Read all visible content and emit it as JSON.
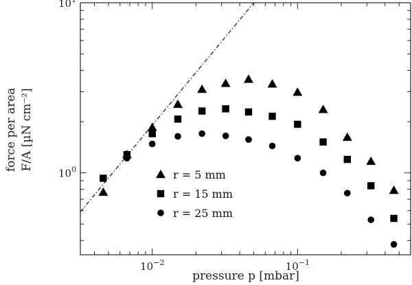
{
  "chart_data": {
    "type": "scatter",
    "x_scale": "log",
    "y_scale": "log",
    "xlim": [
      0.0032,
      0.6
    ],
    "ylim": [
      0.33,
      10
    ],
    "xlabel": "pressure p [mbar]",
    "ylabel_line1": "force per area",
    "ylabel_line2": "F/A [µN cm⁻²]",
    "x_ticks": [
      {
        "value": 0.01,
        "base": "10",
        "exp": "−2"
      },
      {
        "value": 0.1,
        "base": "10",
        "exp": "−1"
      }
    ],
    "y_ticks": [
      {
        "value": 1,
        "base": "10",
        "exp": "0"
      },
      {
        "value": 10,
        "base": "10",
        "exp": "1"
      }
    ],
    "grid": false,
    "legend_position": "bottom-left",
    "reference_line": {
      "style": "dashed",
      "points": [
        [
          0.0032,
          0.59
        ],
        [
          0.05,
          10
        ]
      ]
    },
    "series": [
      {
        "name": "r = 5 mm",
        "marker": "triangle",
        "points": [
          [
            0.0046,
            0.77
          ],
          [
            0.0067,
            1.28
          ],
          [
            0.01,
            1.85
          ],
          [
            0.015,
            2.53
          ],
          [
            0.022,
            3.1
          ],
          [
            0.032,
            3.36
          ],
          [
            0.046,
            3.55
          ],
          [
            0.067,
            3.33
          ],
          [
            0.1,
            2.98
          ],
          [
            0.15,
            2.36
          ],
          [
            0.22,
            1.62
          ],
          [
            0.32,
            1.17
          ],
          [
            0.46,
            0.79
          ]
        ]
      },
      {
        "name": "r = 15 mm",
        "marker": "square",
        "points": [
          [
            0.0046,
            0.93
          ],
          [
            0.0067,
            1.28
          ],
          [
            0.01,
            1.7
          ],
          [
            0.015,
            2.07
          ],
          [
            0.022,
            2.31
          ],
          [
            0.032,
            2.38
          ],
          [
            0.046,
            2.28
          ],
          [
            0.067,
            2.15
          ],
          [
            0.1,
            1.93
          ],
          [
            0.15,
            1.52
          ],
          [
            0.22,
            1.2
          ],
          [
            0.32,
            0.84
          ],
          [
            0.46,
            0.54
          ]
        ]
      },
      {
        "name": "r = 25 mm",
        "marker": "circle",
        "points": [
          [
            0.0067,
            1.22
          ],
          [
            0.01,
            1.48
          ],
          [
            0.015,
            1.64
          ],
          [
            0.022,
            1.7
          ],
          [
            0.032,
            1.65
          ],
          [
            0.046,
            1.57
          ],
          [
            0.067,
            1.44
          ],
          [
            0.1,
            1.22
          ],
          [
            0.15,
            1.0
          ],
          [
            0.22,
            0.76
          ],
          [
            0.32,
            0.53
          ],
          [
            0.46,
            0.38
          ]
        ]
      }
    ]
  }
}
